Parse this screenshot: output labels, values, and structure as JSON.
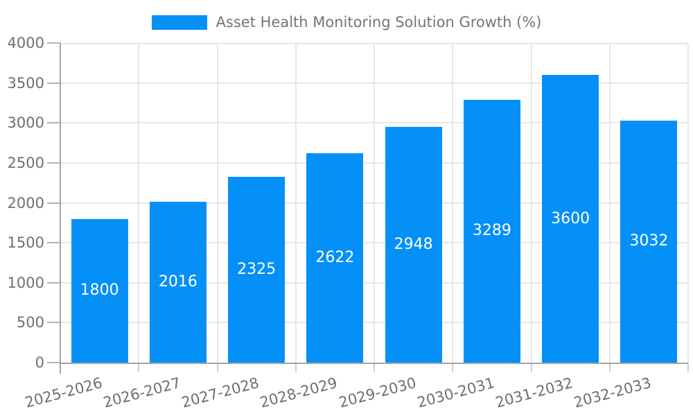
{
  "legend": {
    "label": "Asset Health Monitoring Solution Growth (%)"
  },
  "colors": {
    "bar": "#0590F8",
    "grid": "#e7e7e7",
    "axis": "#a3a3a3",
    "tick": "#b3b3b3",
    "boundary_tick": "#d0d0d0",
    "axis_text": "#6f6f6f",
    "legend_text": "#757575",
    "value_text": "#ffffff",
    "background": "#ffffff"
  },
  "chart_data": {
    "type": "bar",
    "title": "Asset Health Monitoring Solution Growth (%)",
    "xlabel": "",
    "ylabel": "",
    "categories": [
      "2025-2026",
      "2026-2027",
      "2027-2028",
      "2028-2029",
      "2029-2030",
      "2030-2031",
      "2031-2032",
      "2032-2033"
    ],
    "values": [
      1800,
      2016,
      2325,
      2622,
      2948,
      3289,
      3600,
      3032
    ],
    "value_labels": [
      "1800",
      "2016",
      "2325",
      "2622",
      "2948",
      "3289",
      "3600",
      "3032"
    ],
    "ylim": [
      0,
      4000
    ],
    "ytick_step": 500,
    "ytick_labels": [
      "0",
      "500",
      "1000",
      "1500",
      "2000",
      "2500",
      "3000",
      "3500",
      "4000"
    ],
    "grid": true,
    "legend_position": "top",
    "x_label_rotation_deg": -15
  }
}
